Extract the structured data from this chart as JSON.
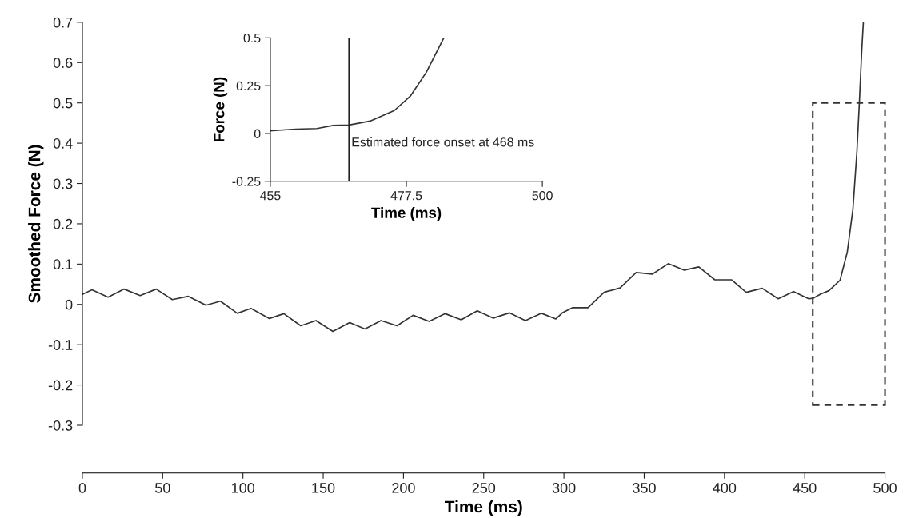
{
  "chart_data": [
    {
      "type": "line",
      "xlabel": "Time (ms)",
      "ylabel": "Smoothed Force (N)",
      "color": "#333333",
      "x": [
        0,
        6,
        16,
        26,
        36,
        46,
        56,
        66,
        77,
        86,
        96.5,
        105,
        116.5,
        125.5,
        136,
        145.5,
        156,
        166.5,
        176,
        186,
        196,
        206,
        216,
        226,
        236,
        246,
        256,
        266,
        276,
        286,
        295,
        299,
        305.5,
        315,
        325,
        335,
        345,
        355,
        365,
        375,
        384,
        394,
        404.5,
        413.5,
        423.5,
        433.5,
        443,
        452.5,
        455,
        460,
        465,
        468,
        472,
        476.5,
        480,
        482.5,
        484,
        485.5,
        486.5
      ],
      "values": [
        0.025,
        0.036,
        0.018,
        0.038,
        0.022,
        0.038,
        0.012,
        0.02,
        -0.002,
        0.008,
        -0.022,
        -0.01,
        -0.035,
        -0.023,
        -0.053,
        -0.04,
        -0.067,
        -0.045,
        -0.061,
        -0.04,
        -0.053,
        -0.027,
        -0.042,
        -0.023,
        -0.038,
        -0.016,
        -0.034,
        -0.021,
        -0.04,
        -0.022,
        -0.036,
        -0.021,
        -0.008,
        -0.008,
        0.03,
        0.041,
        0.079,
        0.075,
        0.101,
        0.085,
        0.093,
        0.061,
        0.061,
        0.03,
        0.04,
        0.014,
        0.032,
        0.014,
        0.015,
        0.026,
        0.034,
        0.045,
        0.06,
        0.13,
        0.236,
        0.38,
        0.5,
        0.63,
        0.7
      ],
      "xlim": [
        0,
        500
      ],
      "ylim": [
        -0.3,
        0.7
      ],
      "xticks": [
        0,
        50,
        100,
        150,
        200,
        250,
        300,
        350,
        400,
        450,
        500
      ],
      "yticks": [
        -0.3,
        -0.2,
        -0.1,
        0,
        0.1,
        0.2,
        0.3,
        0.4,
        0.5,
        0.6,
        0.7
      ]
    },
    {
      "type": "line",
      "xlabel": "Time (ms)",
      "ylabel": "Force (N)",
      "color": "#333333",
      "x": [
        455,
        459.2,
        462.7,
        465.4,
        468,
        471.5,
        475.5,
        478.2,
        480.8,
        483.7
      ],
      "values": [
        0.014,
        0.023,
        0.026,
        0.042,
        0.044,
        0.065,
        0.12,
        0.197,
        0.32,
        0.5
      ],
      "xlim": [
        455,
        500
      ],
      "ylim": [
        -0.25,
        0.5
      ],
      "xticks": [
        455,
        477.5,
        500
      ],
      "yticks": [
        -0.25,
        0,
        0.25,
        0.5
      ],
      "ref_lines": [
        {
          "axis": "x",
          "value": 468,
          "label": "Estimated force onset at 468 ms",
          "color": "#222222"
        }
      ]
    }
  ]
}
